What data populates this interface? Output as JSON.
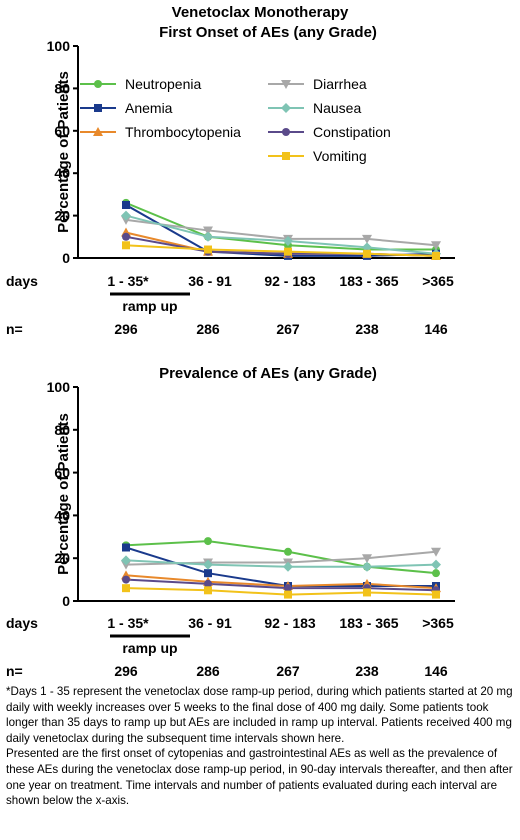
{
  "figure_title": "Venetoclax Monotherapy",
  "footnote": {
    "paragraph_1": "*Days 1 - 35 represent the venetoclax dose ramp-up period, during which patients started at 20 mg daily with weekly increases over 5 weeks to the final dose of 400 mg daily. Some patients took longer than 35 days to ramp up but AEs are included in ramp up interval. Patients received 400 mg daily venetoclax during the subsequent time intervals shown here.",
    "paragraph_2": "Presented are the first onset of cytopenias and gastrointestinal AEs as well as the prevalence of these AEs during the venetoclax dose ramp-up period, in 90-day intervals thereafter, and then after one year on treatment. Time intervals and number of patients evaluated during each interval are shown below the x-axis."
  },
  "chart_data": [
    {
      "type": "line",
      "title": "First Onset of AEs (any Grade)",
      "ylabel": "Percentage of  Patients",
      "ylim": [
        0,
        100
      ],
      "yticks": [
        0,
        20,
        40,
        60,
        80,
        100
      ],
      "grid": false,
      "legend": "top",
      "x_row_label": "days",
      "categories": [
        "1 - 35*",
        "36 - 91",
        "92 - 183",
        "183 - 365",
        ">365"
      ],
      "ramp_label": "ramp up",
      "n_label": "n=",
      "n": [
        "296",
        "286",
        "267",
        "238",
        "146"
      ],
      "series": [
        {
          "name": "Neutropenia",
          "color": "#5cc04a",
          "marker": "circle",
          "values": [
            26,
            10,
            6,
            4,
            4
          ]
        },
        {
          "name": "Anemia",
          "color": "#1a3a8c",
          "marker": "square",
          "values": [
            25,
            3,
            1,
            1,
            2
          ]
        },
        {
          "name": "Thrombocytopenia",
          "color": "#e8892b",
          "marker": "triangle-up",
          "values": [
            12,
            3,
            2,
            2,
            1
          ]
        },
        {
          "name": "Diarrhea",
          "color": "#a8a8a8",
          "marker": "triangle-down",
          "values": [
            18,
            13,
            9,
            9,
            6
          ]
        },
        {
          "name": "Nausea",
          "color": "#7fc4b4",
          "marker": "diamond",
          "values": [
            20,
            10,
            8,
            5,
            2
          ]
        },
        {
          "name": "Constipation",
          "color": "#5a4a8a",
          "marker": "circle",
          "values": [
            10,
            3,
            2,
            2,
            1
          ]
        },
        {
          "name": "Vomiting",
          "color": "#f2c21a",
          "marker": "square",
          "values": [
            6,
            4,
            3,
            2,
            1
          ]
        }
      ]
    },
    {
      "type": "line",
      "title": "Prevalence of AEs (any Grade)",
      "ylabel": "Percentage of  Patients",
      "ylim": [
        0,
        100
      ],
      "yticks": [
        0,
        20,
        40,
        60,
        80,
        100
      ],
      "grid": false,
      "x_row_label": "days",
      "categories": [
        "1 - 35*",
        "36 - 91",
        "92 - 183",
        "183 - 365",
        ">365"
      ],
      "ramp_label": "ramp up",
      "n_label": "n=",
      "n": [
        "296",
        "286",
        "267",
        "238",
        "146"
      ],
      "series": [
        {
          "name": "Neutropenia",
          "color": "#5cc04a",
          "marker": "circle",
          "values": [
            26,
            28,
            23,
            16,
            13
          ]
        },
        {
          "name": "Anemia",
          "color": "#1a3a8c",
          "marker": "square",
          "values": [
            25,
            13,
            7,
            7,
            7
          ]
        },
        {
          "name": "Thrombocytopenia",
          "color": "#e8892b",
          "marker": "triangle-up",
          "values": [
            12,
            9,
            7,
            8,
            6
          ]
        },
        {
          "name": "Diarrhea",
          "color": "#a8a8a8",
          "marker": "triangle-down",
          "values": [
            17,
            18,
            18,
            20,
            23
          ]
        },
        {
          "name": "Nausea",
          "color": "#7fc4b4",
          "marker": "diamond",
          "values": [
            19,
            17,
            16,
            16,
            17
          ]
        },
        {
          "name": "Constipation",
          "color": "#5a4a8a",
          "marker": "circle",
          "values": [
            10,
            8,
            6,
            6,
            5
          ]
        },
        {
          "name": "Vomiting",
          "color": "#f2c21a",
          "marker": "square",
          "values": [
            6,
            5,
            3,
            4,
            3
          ]
        }
      ]
    }
  ]
}
